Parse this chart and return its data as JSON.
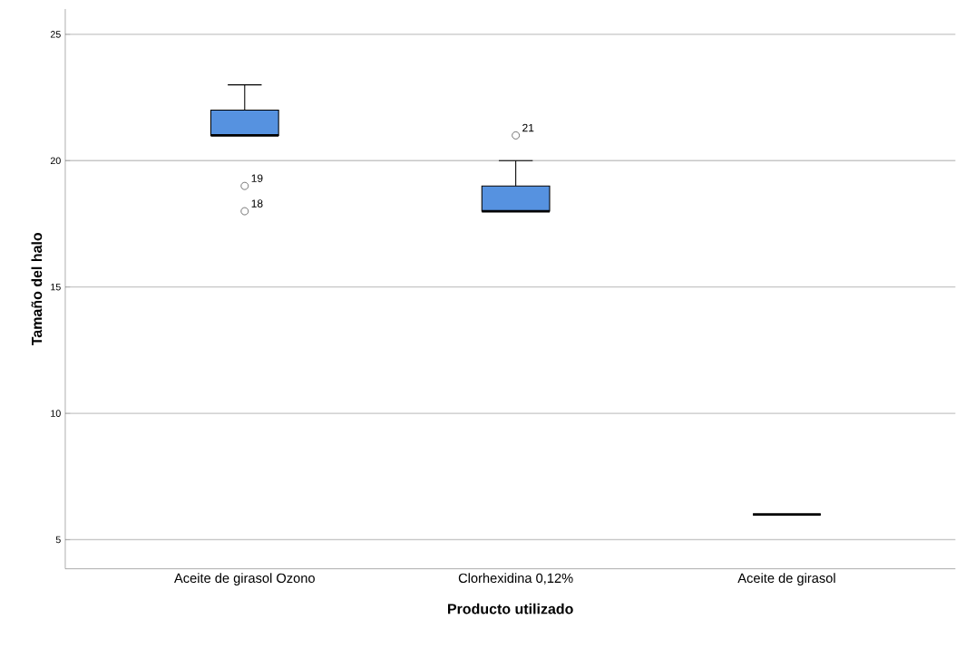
{
  "chart_data": {
    "type": "box",
    "xlabel": "Producto utilizado",
    "ylabel": "Tamaño del halo",
    "categories": [
      "Aceite de girasol Ozono",
      "Clorhexidina 0,12%",
      "Aceite de girasol"
    ],
    "colors": [
      "#5692e0",
      "#5692e0",
      "#000000"
    ],
    "boxes": [
      {
        "low": 21,
        "q1": 21,
        "median": 21,
        "q3": 22,
        "high": 23,
        "outliers": [
          19,
          18
        ]
      },
      {
        "low": 18,
        "q1": 18,
        "median": 18,
        "q3": 19,
        "high": 20,
        "outliers": [
          21
        ]
      },
      {
        "low": 6,
        "q1": 6,
        "median": 6,
        "q3": 6,
        "high": 6
      }
    ],
    "ylim": [
      3.85,
      26
    ],
    "yticks": [
      5,
      10,
      15,
      20,
      25
    ],
    "grid": "y",
    "marker": "circle",
    "annotations": [
      "19",
      "18",
      "21"
    ]
  }
}
